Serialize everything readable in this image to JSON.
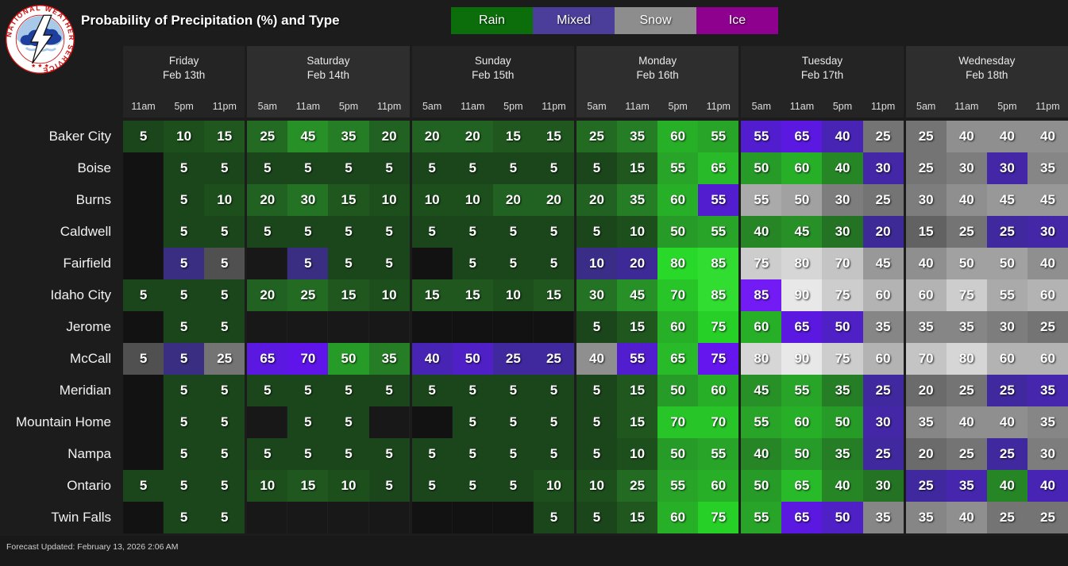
{
  "header": {
    "title": "Probability of Precipitation (%) and Type",
    "logo_text": "NATIONAL WEATHER SERVICE",
    "logo_stars": "★ ★ ★",
    "legend": [
      {
        "label": "Rain",
        "color": "#0b6e0b"
      },
      {
        "label": "Mixed",
        "color": "#4b3e9a"
      },
      {
        "label": "Snow",
        "color": "#8d8d8d"
      },
      {
        "label": "Ice",
        "color": "#8e018e"
      }
    ]
  },
  "chart_data": {
    "type": "heatmap",
    "title": "Probability of Precipitation (%) and Type",
    "value_unit": "percent probability of precipitation",
    "cell_encoding": {
      "r": "Rain",
      "m": "Mixed",
      "s": "Snow",
      "i": "Ice",
      "": "none"
    },
    "days": [
      {
        "label": "Friday",
        "date": "Feb 13th",
        "times": [
          "11am",
          "5pm",
          "11pm"
        ]
      },
      {
        "label": "Saturday",
        "date": "Feb 14th",
        "times": [
          "5am",
          "11am",
          "5pm",
          "11pm"
        ]
      },
      {
        "label": "Sunday",
        "date": "Feb 15th",
        "times": [
          "5am",
          "11am",
          "5pm",
          "11pm"
        ]
      },
      {
        "label": "Monday",
        "date": "Feb 16th",
        "times": [
          "5am",
          "11am",
          "5pm",
          "11pm"
        ]
      },
      {
        "label": "Tuesday",
        "date": "Feb 17th",
        "times": [
          "5am",
          "11am",
          "5pm",
          "11pm"
        ]
      },
      {
        "label": "Wednesday",
        "date": "Feb 18th",
        "times": [
          "5am",
          "11am",
          "5pm",
          "11pm"
        ]
      }
    ],
    "rows": [
      {
        "city": "Baker City",
        "cells": [
          "5r",
          "10r",
          "15r",
          "25r",
          "45r",
          "35r",
          "20r",
          "20r",
          "20r",
          "15r",
          "15r",
          "25r",
          "35r",
          "60r",
          "55r",
          "55m",
          "65m",
          "40m",
          "25s",
          "25s",
          "40s",
          "40s",
          "40s"
        ]
      },
      {
        "city": "Boise",
        "cells": [
          "",
          "5r",
          "5r",
          "5r",
          "5r",
          "5r",
          "5r",
          "5r",
          "5r",
          "5r",
          "5r",
          "5r",
          "15r",
          "55r",
          "65r",
          "50r",
          "60r",
          "40r",
          "30m",
          "25s",
          "30s",
          "30m",
          "35s"
        ]
      },
      {
        "city": "Burns",
        "cells": [
          "",
          "5r",
          "10r",
          "20r",
          "30r",
          "15r",
          "10r",
          "10r",
          "10r",
          "20r",
          "20r",
          "20r",
          "35r",
          "60r",
          "55m",
          "55s",
          "50s",
          "30s",
          "25s",
          "30s",
          "40s",
          "45s",
          "45s"
        ]
      },
      {
        "city": "Caldwell",
        "cells": [
          "",
          "5r",
          "5r",
          "5r",
          "5r",
          "5r",
          "5r",
          "5r",
          "5r",
          "5r",
          "5r",
          "5r",
          "10r",
          "50r",
          "55r",
          "40r",
          "45r",
          "30r",
          "20m",
          "15s",
          "25s",
          "25m",
          "30m"
        ]
      },
      {
        "city": "Fairfield",
        "cells": [
          "",
          "5m",
          "5s",
          "",
          "5m",
          "5r",
          "5r",
          "",
          "5r",
          "5r",
          "5r",
          "10m",
          "20m",
          "80r",
          "85r",
          "75s",
          "80s",
          "70s",
          "45s",
          "40s",
          "50s",
          "50s",
          "40s"
        ]
      },
      {
        "city": "Idaho City",
        "cells": [
          "5r",
          "5r",
          "5r",
          "20r",
          "25r",
          "15r",
          "10r",
          "15r",
          "15r",
          "10r",
          "15r",
          "30r",
          "45r",
          "70r",
          "85r",
          "85m",
          "90s",
          "75s",
          "60s",
          "60s",
          "75s",
          "55s",
          "60s"
        ]
      },
      {
        "city": "Jerome",
        "cells": [
          "",
          "5r",
          "5r",
          "",
          "",
          "",
          "",
          "",
          "",
          "",
          "",
          "5r",
          "15r",
          "60r",
          "75r",
          "60r",
          "65m",
          "50m",
          "35s",
          "35s",
          "35s",
          "30s",
          "25s"
        ]
      },
      {
        "city": "McCall",
        "cells": [
          "5s",
          "5m",
          "25s",
          "65m",
          "70m",
          "50r",
          "35r",
          "40m",
          "50m",
          "25m",
          "25m",
          "40s",
          "55m",
          "65r",
          "75m",
          "80s",
          "90s",
          "75s",
          "60s",
          "70s",
          "80s",
          "60s",
          "60s"
        ]
      },
      {
        "city": "Meridian",
        "cells": [
          "",
          "5r",
          "5r",
          "5r",
          "5r",
          "5r",
          "5r",
          "5r",
          "5r",
          "5r",
          "5r",
          "5r",
          "15r",
          "50r",
          "60r",
          "45r",
          "55r",
          "35r",
          "25m",
          "20s",
          "25s",
          "25m",
          "35m"
        ]
      },
      {
        "city": "Mountain Home",
        "cells": [
          "",
          "5r",
          "5r",
          "",
          "5r",
          "5r",
          "",
          "",
          "5r",
          "5r",
          "5r",
          "5r",
          "15r",
          "70r",
          "70r",
          "55r",
          "60r",
          "50r",
          "30m",
          "35s",
          "40s",
          "40s",
          "35s"
        ]
      },
      {
        "city": "Nampa",
        "cells": [
          "",
          "5r",
          "5r",
          "5r",
          "5r",
          "5r",
          "5r",
          "5r",
          "5r",
          "5r",
          "5r",
          "5r",
          "10r",
          "50r",
          "55r",
          "40r",
          "50r",
          "35r",
          "25m",
          "20s",
          "25s",
          "25m",
          "30s"
        ]
      },
      {
        "city": "Ontario",
        "cells": [
          "5r",
          "5r",
          "5r",
          "10r",
          "15r",
          "10r",
          "5r",
          "5r",
          "5r",
          "5r",
          "10r",
          "10r",
          "25r",
          "55r",
          "60r",
          "50r",
          "65r",
          "40r",
          "30r",
          "25m",
          "35m",
          "40r",
          "40m"
        ]
      },
      {
        "city": "Twin Falls",
        "cells": [
          "",
          "5r",
          "5r",
          "",
          "",
          "",
          "",
          "",
          "",
          "",
          "5r",
          "5r",
          "15r",
          "60r",
          "75r",
          "55r",
          "65m",
          "50m",
          "35s",
          "35s",
          "40s",
          "25s",
          "25s"
        ]
      }
    ]
  },
  "footer": {
    "updated": "Forecast Updated: February 13, 2026 2:06 AM"
  }
}
